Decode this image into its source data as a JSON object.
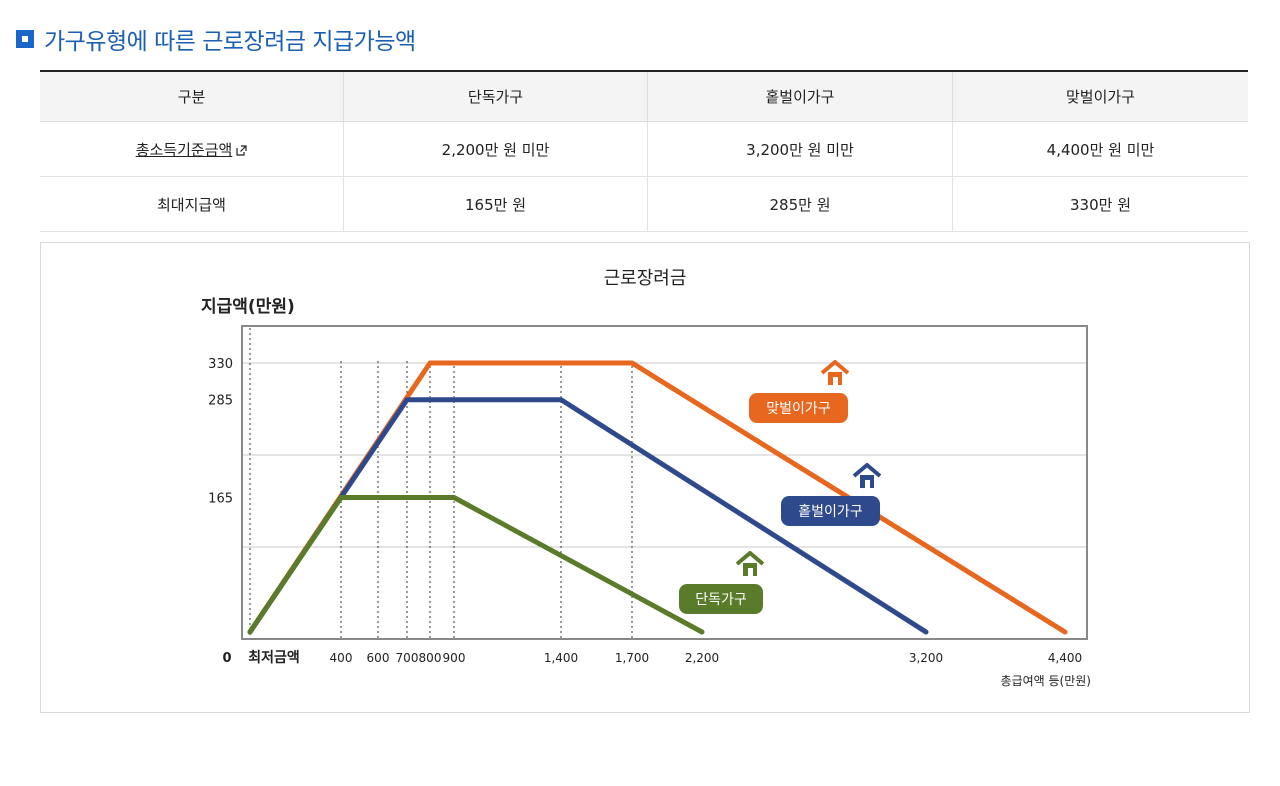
{
  "section": {
    "title": "가구유형에 따른 근로장려금 지급가능액",
    "icon": "square-bullet-icon"
  },
  "table": {
    "headers": [
      "구분",
      "단독가구",
      "홑벌이가구",
      "맞벌이가구"
    ],
    "rows": [
      {
        "label": "총소득기준금액",
        "is_link": true,
        "link_icon": "external-link-icon",
        "values": [
          "2,200만 원 미만",
          "3,200만 원 미만",
          "4,400만 원 미만"
        ]
      },
      {
        "label": "최대지급액",
        "is_link": false,
        "values": [
          "165만 원",
          "285만 원",
          "330만 원"
        ]
      }
    ]
  },
  "chart_data": {
    "type": "line",
    "title": "근로장려금",
    "ylabel": "지급액(만원)",
    "xlabel": "총급여액 등(만원)",
    "origin_label": "0",
    "min_label": "최저금액",
    "x_ticks": [
      "400",
      "600",
      "700",
      "800",
      "900",
      "1,400",
      "1,700",
      "2,200",
      "3,200",
      "4,400"
    ],
    "y_ticks": [
      "330",
      "285",
      "165"
    ],
    "grid": true,
    "series": [
      {
        "name": "맞벌이가구",
        "color": "#e8671f",
        "x": [
          50,
          800,
          1700,
          4400
        ],
        "y": [
          0,
          330,
          330,
          0
        ]
      },
      {
        "name": "홑벌이가구",
        "color": "#2f4a8c",
        "x": [
          50,
          700,
          1400,
          3200
        ],
        "y": [
          0,
          285,
          285,
          0
        ]
      },
      {
        "name": "단독가구",
        "color": "#5a7b2a",
        "x": [
          50,
          400,
          900,
          2200
        ],
        "y": [
          0,
          165,
          165,
          0
        ]
      }
    ]
  }
}
